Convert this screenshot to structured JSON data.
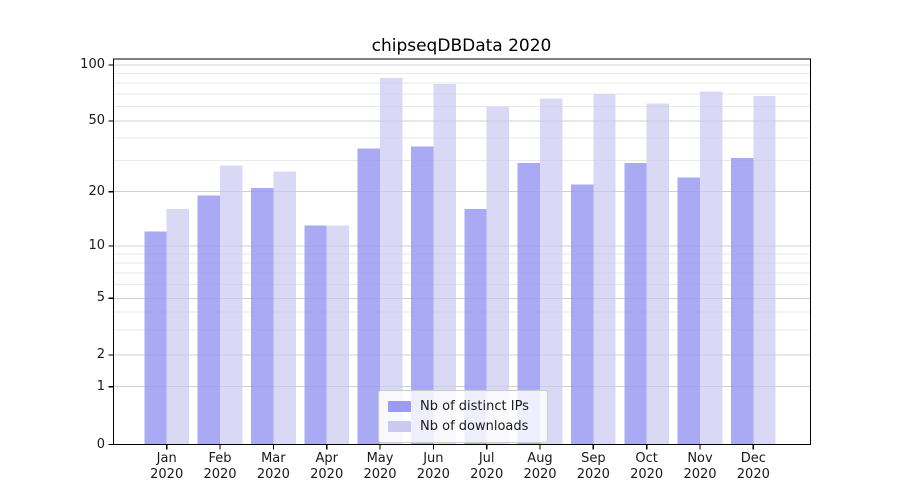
{
  "figure": {
    "background": "#ffffff"
  },
  "chart_data": {
    "type": "bar",
    "title": "chipseqDBData 2020",
    "categories": [
      "Jan",
      "Feb",
      "Mar",
      "Apr",
      "May",
      "Jun",
      "Jul",
      "Aug",
      "Sep",
      "Oct",
      "Nov",
      "Dec"
    ],
    "category_year": "2020",
    "series": [
      {
        "name": "Nb of distinct IPs",
        "color": "#9b9bf2",
        "values": [
          12,
          19,
          21,
          13,
          35,
          36,
          16,
          29,
          22,
          29,
          24,
          31
        ]
      },
      {
        "name": "Nb of downloads",
        "color": "#c9c9f2",
        "values": [
          16,
          28,
          26,
          13,
          85,
          79,
          60,
          66,
          70,
          62,
          72,
          68
        ]
      }
    ],
    "yscale": "log-with-zero",
    "yticks": [
      0,
      1,
      2,
      5,
      10,
      20,
      50,
      100
    ],
    "y_minor_gridlines": [
      3,
      4,
      6,
      7,
      8,
      9,
      30,
      40,
      60,
      70,
      80,
      90
    ],
    "ylim": [
      0,
      107
    ],
    "grid": true,
    "legend_position": "lower-center-inside",
    "colors": {
      "major_grid": "#d0d0d0",
      "minor_grid": "#eaeaea",
      "axis": "#000000",
      "text": "#1a1a1a"
    }
  }
}
